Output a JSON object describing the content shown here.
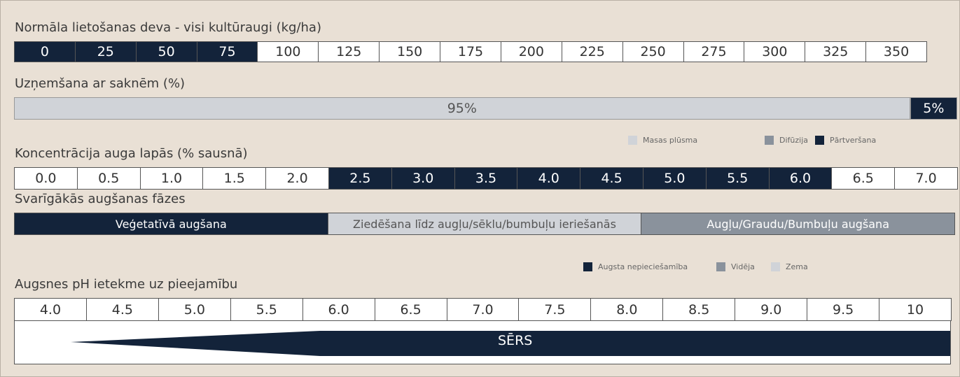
{
  "rows": [
    {
      "title": "Normāla lietošanas deva - visi kultūraugi (kg/ha)",
      "cells": [
        "0",
        "25",
        "50",
        "75",
        "100",
        "125",
        "150",
        "175",
        "200",
        "225",
        "250",
        "275",
        "300",
        "325",
        "350"
      ],
      "colors": [
        "#13233a",
        "#13233a",
        "#13233a",
        "#13233a",
        "#ffffff",
        "#ffffff",
        "#ffffff",
        "#ffffff",
        "#ffffff",
        "#ffffff",
        "#ffffff",
        "#ffffff",
        "#ffffff",
        "#ffffff",
        "#ffffff"
      ]
    },
    {
      "title": "Uzņemšana ar saknēm (%)",
      "values": [
        95,
        5
      ],
      "value_labels": [
        "95%",
        "5%"
      ],
      "colors": [
        "#d0d3d8",
        "#13233a"
      ]
    },
    {
      "legend": [
        "Masas plūsma",
        "Difūzija",
        "Pārtveršana"
      ],
      "colors": [
        "#d0d3d8",
        "#8a929c",
        "#13233a"
      ]
    },
    {
      "title": "Koncentrācija auga lapās (% sausnā)",
      "cells": [
        "0.0",
        "0.5",
        "1.0",
        "1.5",
        "2.0",
        "2.5",
        "3.0",
        "3.5",
        "4.0",
        "4.5",
        "5.0",
        "5.5",
        "6.0",
        "6.5",
        "7.0"
      ],
      "colors": [
        "#ffffff",
        "#ffffff",
        "#ffffff",
        "#ffffff",
        "#ffffff",
        "#13233a",
        "#13233a",
        "#13233a",
        "#13233a",
        "#13233a",
        "#13233a",
        "#13233a",
        "#13233a",
        "#ffffff",
        "#ffffff"
      ]
    },
    {
      "title": "Svarīgākās augšanas fāzes",
      "cells": [
        "Veģetatīvā augšana",
        "Ziedēšana līdz augļu/sēklu/bumbuļu ieriešanās",
        "Augļu/Graudu/Bumbuļu augšana"
      ],
      "colors": [
        "#13233a",
        "#d0d3d8",
        "#8a929c"
      ]
    },
    {
      "legend": [
        "Augsta nepieciešamība",
        "Vidēja",
        "Zema"
      ],
      "colors": [
        "#13233a",
        "#8a929c",
        "#d0d3d8"
      ]
    },
    {
      "title": "Augsnes pH ietekme uz pieejamību",
      "cells": [
        "4.0",
        "4.5",
        "5.0",
        "5.5",
        "6.0",
        "6.5",
        "7.0",
        "7.5",
        "8.0",
        "8.5",
        "9.0",
        "9.5",
        "10"
      ],
      "colors": [
        "#ffffff",
        "#ffffff",
        "#ffffff",
        "#ffffff",
        "#ffffff",
        "#ffffff",
        "#ffffff",
        "#ffffff",
        "#ffffff",
        "#ffffff",
        "#ffffff",
        "#ffffff",
        "#ffffff"
      ],
      "wedge": "SĒRS"
    }
  ]
}
